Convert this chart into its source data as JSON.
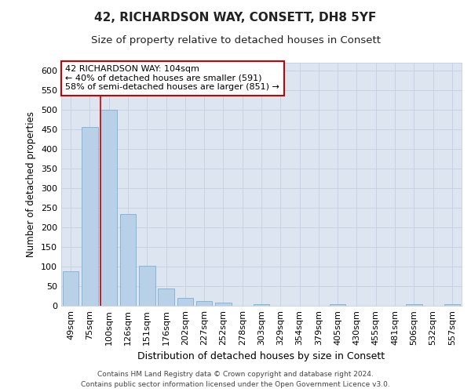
{
  "title1": "42, RICHARDSON WAY, CONSETT, DH8 5YF",
  "title2": "Size of property relative to detached houses in Consett",
  "xlabel": "Distribution of detached houses by size in Consett",
  "ylabel": "Number of detached properties",
  "categories": [
    "49sqm",
    "75sqm",
    "100sqm",
    "126sqm",
    "151sqm",
    "176sqm",
    "202sqm",
    "227sqm",
    "252sqm",
    "278sqm",
    "303sqm",
    "329sqm",
    "354sqm",
    "379sqm",
    "405sqm",
    "430sqm",
    "455sqm",
    "481sqm",
    "506sqm",
    "532sqm",
    "557sqm"
  ],
  "values": [
    88,
    457,
    500,
    235,
    103,
    45,
    20,
    12,
    8,
    1,
    5,
    0,
    0,
    0,
    4,
    0,
    0,
    0,
    4,
    0,
    4
  ],
  "bar_color": "#b8d0e8",
  "bar_edge_color": "#7aafd4",
  "red_line_index": 2,
  "red_line_color": "#cc0000",
  "annotation_line1": "42 RICHARDSON WAY: 104sqm",
  "annotation_line2": "← 40% of detached houses are smaller (591)",
  "annotation_line3": "58% of semi-detached houses are larger (851) →",
  "annotation_box_color": "#ffffff",
  "annotation_box_edge_color": "#cc0000",
  "ylim": [
    0,
    620
  ],
  "yticks": [
    0,
    50,
    100,
    150,
    200,
    250,
    300,
    350,
    400,
    450,
    500,
    550,
    600
  ],
  "grid_color": "#c5cfe0",
  "bg_color": "#dde5f0",
  "footnote1": "Contains HM Land Registry data © Crown copyright and database right 2024.",
  "footnote2": "Contains public sector information licensed under the Open Government Licence v3.0.",
  "title1_fontsize": 11,
  "title2_fontsize": 9.5,
  "xlabel_fontsize": 9,
  "ylabel_fontsize": 8.5,
  "tick_fontsize": 8,
  "annotation_fontsize": 8,
  "footnote_fontsize": 6.5
}
